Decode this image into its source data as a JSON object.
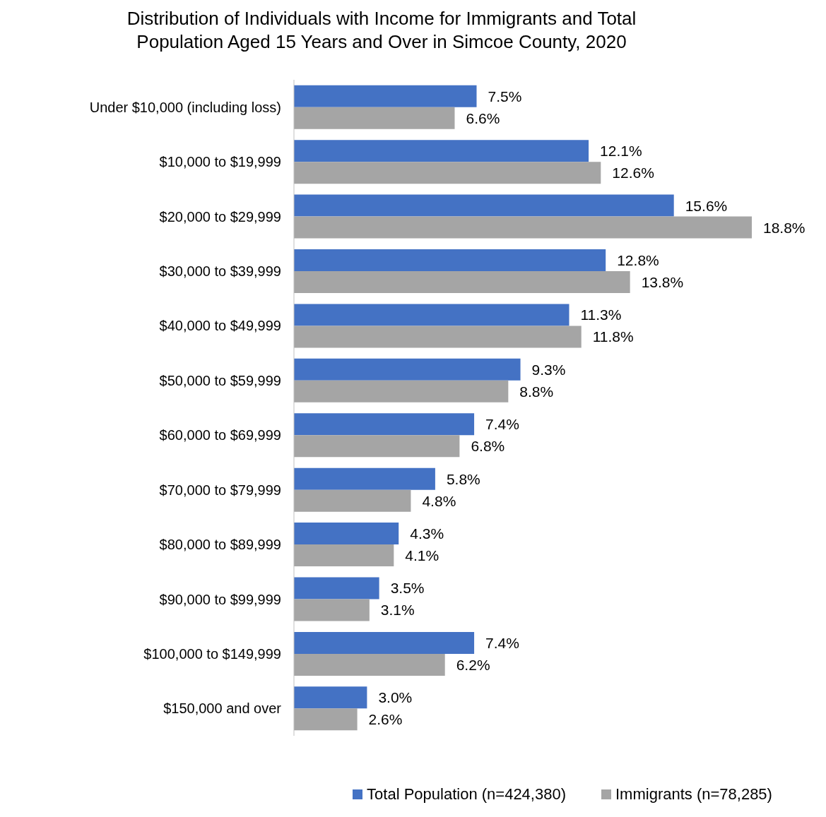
{
  "chart_data": {
    "type": "bar",
    "orientation": "horizontal",
    "title": "Distribution of Individuals with Income for Immigrants and Total Population Aged 15 Years and Over in Simcoe County, 2020",
    "categories": [
      "Under $10,000 (including loss)",
      "$10,000 to $19,999",
      "$20,000 to $29,999",
      "$30,000 to $39,999",
      "$40,000 to $49,999",
      "$50,000 to $59,999",
      "$60,000 to $69,999",
      "$70,000 to $79,999",
      "$80,000 to $89,999",
      "$90,000 to $99,999",
      "$100,000 to $149,999",
      "$150,000 and over"
    ],
    "series": [
      {
        "name": "Total Population (n=424,380)",
        "color": "#4472c4",
        "values": [
          7.5,
          12.1,
          15.6,
          12.8,
          11.3,
          9.3,
          7.4,
          5.8,
          4.3,
          3.5,
          7.4,
          3.0
        ],
        "value_labels": [
          "7.5%",
          "12.1%",
          "15.6%",
          "12.8%",
          "11.3%",
          "9.3%",
          "7.4%",
          "5.8%",
          "4.3%",
          "3.5%",
          "7.4%",
          "3.0%"
        ]
      },
      {
        "name": "Immigrants (n=78,285)",
        "color": "#a5a5a5",
        "values": [
          6.6,
          12.6,
          18.8,
          13.8,
          11.8,
          8.8,
          6.8,
          4.8,
          4.1,
          3.1,
          6.2,
          2.6
        ],
        "value_labels": [
          "6.6%",
          "12.6%",
          "18.8%",
          "13.8%",
          "11.8%",
          "8.8%",
          "6.8%",
          "4.8%",
          "4.1%",
          "3.1%",
          "6.2%",
          "2.6%"
        ]
      }
    ],
    "legend": "bottom",
    "grid": false
  }
}
